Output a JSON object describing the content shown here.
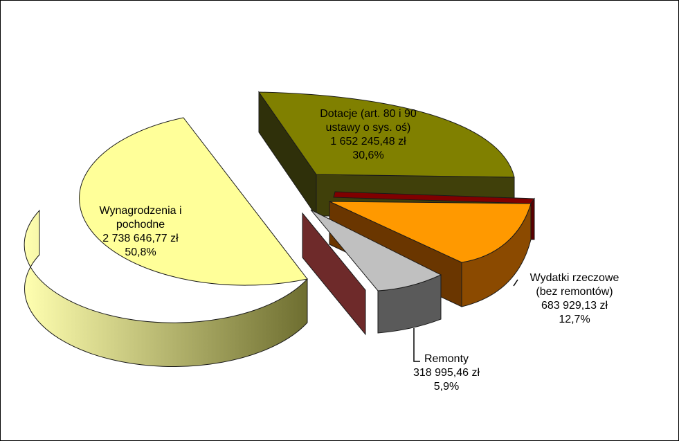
{
  "chart_data": {
    "type": "pie",
    "title": "",
    "three_d": true,
    "exploded": true,
    "slices": [
      {
        "name_lines": [
          "Wynagrodzenia i",
          "pochodne"
        ],
        "value": 2738646.77,
        "value_label": "2 738 646,77 zł",
        "percent": 50.8,
        "percent_label": "50,8%",
        "color": "#FFFF99"
      },
      {
        "name_lines": [
          "Dotacje (art. 80 i 90",
          "ustawy  o sys. oś)"
        ],
        "value": 1652245.48,
        "value_label": "1 652 245,48 zł",
        "percent": 30.6,
        "percent_label": "30,6%",
        "color": "#808000"
      },
      {
        "name_lines": [
          ""
        ],
        "value": 0,
        "value_label": "",
        "percent": 0,
        "percent_label": "",
        "color": "#800000"
      },
      {
        "name_lines": [
          "Wydatki rzeczowe",
          "(bez remontów)"
        ],
        "value": 683929.13,
        "value_label": "683 929,13 zł",
        "percent": 12.7,
        "percent_label": "12,7%",
        "color": "#FF9900"
      },
      {
        "name_lines": [
          "Remonty"
        ],
        "value": 318995.46,
        "value_label": "318 995,46 zł",
        "percent": 5.9,
        "percent_label": "5,9%",
        "color": "#C0C0C0"
      },
      {
        "name_lines": [
          ""
        ],
        "value": 0,
        "value_label": "",
        "percent": 0,
        "percent_label": "",
        "color": "#993333"
      }
    ]
  }
}
